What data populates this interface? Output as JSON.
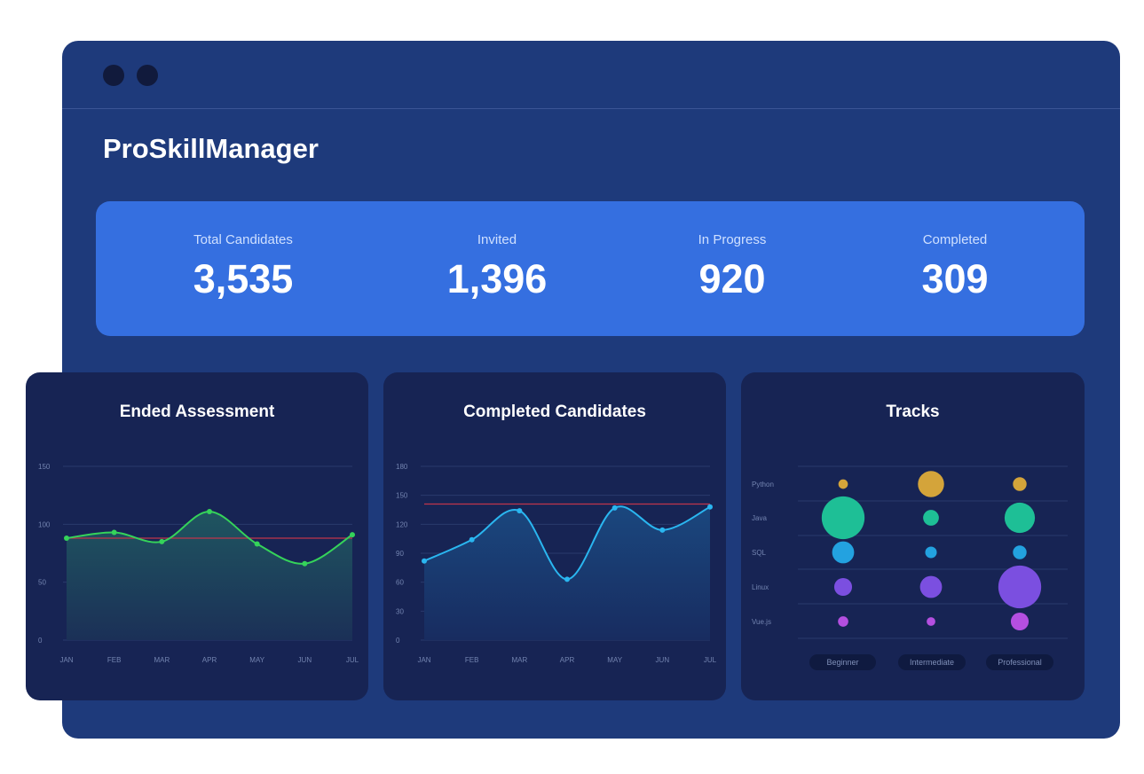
{
  "app": {
    "title": "ProSkillManager"
  },
  "stats": [
    {
      "label": "Total Candidates",
      "value": "3,535"
    },
    {
      "label": "Invited",
      "value": "1,396"
    },
    {
      "label": "In Progress",
      "value": "920"
    },
    {
      "label": "Completed",
      "value": "309"
    }
  ],
  "colors": {
    "window": "#1e3a7b",
    "stats_bar": "#356fe0",
    "card": "#172454",
    "line_green": "#35d35a",
    "line_blue": "#2ab6f0",
    "reference_line": "#c0354b",
    "bubble_gold": "#d4a43a",
    "bubble_teal": "#1ebf96",
    "bubble_blue": "#23a2e0",
    "bubble_purple": "#7b4fe0",
    "bubble_magenta": "#b44fe0"
  },
  "chart_data": [
    {
      "type": "line",
      "title": "Ended Assessment",
      "categories": [
        "JAN",
        "FEB",
        "MAR",
        "APR",
        "MAY",
        "JUN",
        "JUL"
      ],
      "series": [
        {
          "values": [
            88,
            93,
            85,
            111,
            83,
            66,
            91
          ]
        }
      ],
      "reference_line": 88,
      "yticks": [
        "0",
        "50",
        "100",
        "150"
      ],
      "ylim": [
        0,
        150
      ],
      "grid": true,
      "fill": "area"
    },
    {
      "type": "line",
      "title": "Completed Candidates",
      "categories": [
        "JAN",
        "FEB",
        "MAR",
        "APR",
        "MAY",
        "JUN",
        "JUL"
      ],
      "series": [
        {
          "values": [
            82,
            104,
            134,
            63,
            137,
            114,
            138
          ]
        }
      ],
      "reference_line": 141,
      "yticks": [
        "0",
        "30",
        "60",
        "90",
        "120",
        "150",
        "180"
      ],
      "ylim": [
        0,
        180
      ],
      "grid": true,
      "fill": "area"
    },
    {
      "type": "scatter",
      "title": "Tracks",
      "rows": [
        "Python",
        "Java",
        "SQL",
        "Linux",
        "Vue.js"
      ],
      "columns": [
        "Beginner",
        "Intermediate",
        "Professional"
      ],
      "sizes": [
        [
          1,
          5,
          2
        ],
        [
          9,
          2.5,
          6
        ],
        [
          4,
          1.5,
          2
        ],
        [
          3,
          4,
          9
        ],
        [
          1.2,
          0.8,
          3
        ]
      ],
      "row_colors": [
        "#d4a43a",
        "#1ebf96",
        "#23a2e0",
        "#7b4fe0",
        "#b44fe0"
      ]
    }
  ]
}
